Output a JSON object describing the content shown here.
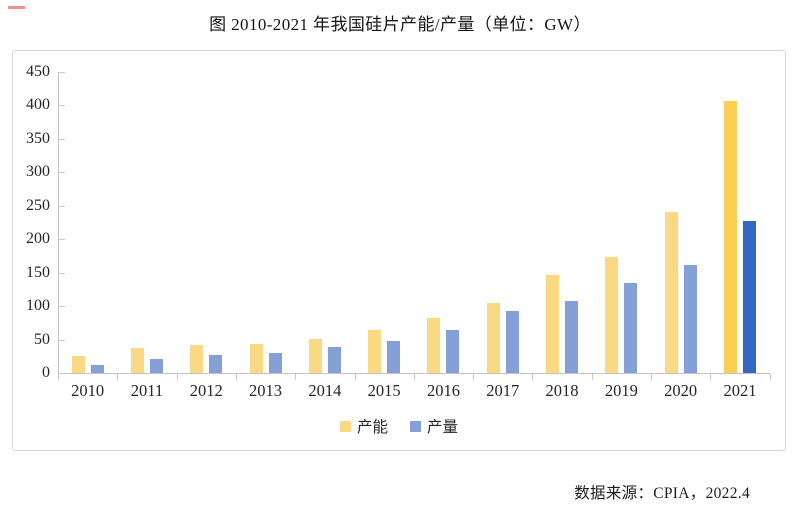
{
  "title": "图 2010-2021 年我国硅片产能/产量（单位：GW）",
  "source_note": "数据来源：CPIA，2022.4",
  "legend": {
    "items": [
      {
        "label": "产能",
        "color": "#fad985"
      },
      {
        "label": "产量",
        "color": "#84a0d7"
      }
    ]
  },
  "chart_data": {
    "type": "bar",
    "title": "图 2010-2021 年我国硅片产能/产量（单位：GW）",
    "unit": "GW",
    "categories": [
      "2010",
      "2011",
      "2012",
      "2013",
      "2014",
      "2015",
      "2016",
      "2017",
      "2018",
      "2019",
      "2020",
      "2021"
    ],
    "series": [
      {
        "name": "产能",
        "color": "#fad985",
        "highlight_color": "#fbce55",
        "values": [
          25,
          37,
          42,
          43,
          51,
          65,
          82,
          105,
          146,
          174,
          240,
          407
        ]
      },
      {
        "name": "产量",
        "color": "#84a0d7",
        "highlight_color": "#3566c1",
        "values": [
          12,
          21,
          27,
          30,
          39,
          48,
          65,
          93,
          108,
          135,
          161,
          227
        ]
      }
    ],
    "highlight_category": "2021",
    "ylim": [
      0,
      450
    ],
    "yticks": [
      0,
      50,
      100,
      150,
      200,
      250,
      300,
      350,
      400,
      450
    ],
    "grid": false,
    "legend_position": "bottom",
    "source": "数据来源：CPIA，2022.4"
  }
}
